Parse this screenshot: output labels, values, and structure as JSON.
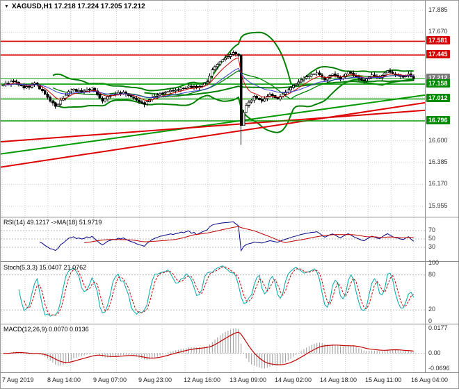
{
  "window": {
    "title": "XAGUSD,H1"
  },
  "header": {
    "marker": "▼",
    "symbol_line": "XAGUSD,H1 17.218 17.224 17.205 17.212"
  },
  "colors": {
    "background": "#ffffff",
    "grid": "#cfcfcf",
    "separator": "#8a8a8a",
    "axis_text": "#333333",
    "up_body": "#ffffff",
    "down_body": "#000000",
    "candle_outline": "#000000",
    "bands": "#008000",
    "ma_fast": "#d00000",
    "ma_slow": "#3a3ad0",
    "resistance": "#dd0000",
    "support": "#009a00",
    "rsi": "#000080",
    "rsi_ma": "#c00000",
    "stoch": "#00a8a8",
    "stoch_signal": "#c00000",
    "macd_hist": "#9a9a9a",
    "macd_signal": "#c00000"
  },
  "axis": {
    "price_labels": [
      {
        "text": "17.885",
        "price": 17.885
      },
      {
        "text": "17.670",
        "price": 17.67
      },
      {
        "text": "16.600",
        "price": 16.6
      },
      {
        "text": "16.385",
        "price": 16.385
      },
      {
        "text": "16.170",
        "price": 16.17
      },
      {
        "text": "15.955",
        "price": 15.955
      }
    ],
    "badges": [
      {
        "text": "17.581",
        "price": 17.581,
        "bg": "#d40000"
      },
      {
        "text": "17.445",
        "price": 17.445,
        "bg": "#d40000"
      },
      {
        "text": "17.212",
        "price": 17.212,
        "bg": "#7a7a7a"
      },
      {
        "text": "17.158",
        "price": 17.158,
        "bg": "#008a00"
      },
      {
        "text": "17.012",
        "price": 17.012,
        "bg": "#008a00"
      },
      {
        "text": "16.796",
        "price": 16.796,
        "bg": "#008a00"
      }
    ],
    "time_labels": [
      "7 Aug 2019",
      "8 Aug 14:00",
      "9 Aug 07:00",
      "9 Aug 23:00",
      "12 Aug 16:00",
      "13 Aug 09:00",
      "14 Aug 02:00",
      "14 Aug 18:00",
      "15 Aug 11:00",
      "16 Aug 04:00"
    ]
  },
  "panels": {
    "rsi": {
      "header": "RSI(14) 49.1217   ->MA(18) 51.9719",
      "levels": [
        70,
        50,
        30
      ]
    },
    "stoch": {
      "header": "Stoch(5,3,3) 15.0407 21.0762",
      "scale": [
        100,
        80,
        20,
        0
      ],
      "levels": [
        80,
        20
      ]
    },
    "macd": {
      "header": "MACD(12,26,9) 0.0070 0.0136",
      "scale_top": "0.0177",
      "scale_zero": "0.00",
      "scale_bottom": "-0.0696"
    }
  },
  "chart_data": {
    "type": "candlestick",
    "symbol": "XAGUSD",
    "timeframe": "H1",
    "title": "XAGUSD,H1",
    "quote": {
      "open": 17.218,
      "high": 17.224,
      "low": 17.205,
      "close": 17.212
    },
    "ylim": [
      15.955,
      17.885
    ],
    "first_open": 17.14,
    "closes": [
      17.15,
      17.165,
      17.155,
      17.185,
      17.19,
      17.178,
      17.15,
      17.142,
      17.12,
      17.135,
      17.128,
      17.158,
      17.17,
      17.15,
      17.11,
      17.095,
      17.06,
      17.03,
      16.99,
      16.975,
      16.94,
      16.96,
      17.0,
      17.02,
      17.05,
      17.085,
      17.1,
      17.11,
      17.085,
      17.095,
      17.08,
      17.09,
      17.11,
      17.1,
      17.12,
      17.09,
      17.06,
      17.02,
      16.99,
      17.01,
      17.035,
      17.045,
      17.06,
      17.055,
      17.075,
      17.065,
      17.08,
      17.06,
      17.045,
      17.03,
      17.02,
      17.0,
      16.985,
      16.975,
      16.96,
      16.985,
      17.005,
      17.025,
      17.04,
      17.05,
      17.065,
      17.07,
      17.08,
      17.085,
      17.095,
      17.09,
      17.1,
      17.105,
      17.12,
      17.115,
      17.13,
      17.14,
      17.125,
      17.135,
      17.12,
      17.135,
      17.15,
      17.165,
      17.18,
      17.24,
      17.3,
      17.33,
      17.355,
      17.38,
      17.4,
      17.415,
      17.43,
      17.45,
      17.47,
      17.455,
      17.44,
      16.75,
      16.88,
      16.95,
      16.98,
      17.0,
      17.04,
      17.02,
      17.005,
      16.99,
      17.015,
      17.04,
      17.06,
      17.045,
      17.025,
      17.01,
      17.035,
      17.06,
      17.08,
      17.1,
      17.125,
      17.145,
      17.16,
      17.18,
      17.2,
      17.215,
      17.23,
      17.24,
      17.255,
      17.26,
      17.27,
      17.25,
      17.225,
      17.2,
      17.22,
      17.245,
      17.26,
      17.245,
      17.225,
      17.21,
      17.235,
      17.26,
      17.28,
      17.265,
      17.245,
      17.23,
      17.215,
      17.2,
      17.19,
      17.21,
      17.23,
      17.25,
      17.24,
      17.23,
      17.22,
      17.245,
      17.27,
      17.29,
      17.275,
      17.26,
      17.25,
      17.245,
      17.235,
      17.23,
      17.245,
      17.26,
      17.235,
      17.212
    ],
    "wick_overrides": [
      {
        "index": 20,
        "low": 16.915
      },
      {
        "index": 54,
        "low": 16.93
      },
      {
        "index": 88,
        "high": 17.492
      },
      {
        "index": 91,
        "high": 17.452,
        "low": 16.56
      },
      {
        "index": 92,
        "low": 16.82
      }
    ],
    "levels": {
      "resistance": [
        17.581,
        17.445
      ],
      "support": [
        17.158,
        17.012,
        16.796
      ],
      "bid": 17.212
    },
    "trendlines": [
      {
        "color": "#009900",
        "p_start": 16.47,
        "p_end": 17.05
      },
      {
        "color": "#dd0000",
        "p_start": 16.34,
        "p_end": 16.975
      },
      {
        "color": "#dd0000",
        "p_start": 16.59,
        "p_end": 16.9
      }
    ],
    "price_axis": {
      "min": 15.955,
      "max": 17.885,
      "grid": [
        17.885,
        17.67,
        17.455,
        17.24,
        17.025,
        16.81,
        16.6,
        16.385,
        16.17,
        15.955
      ]
    },
    "time_categories": [
      "7 Aug 2019",
      "8 Aug 14:00",
      "9 Aug 07:00",
      "9 Aug 23:00",
      "12 Aug 16:00",
      "13 Aug 09:00",
      "14 Aug 02:00",
      "14 Aug 18:00",
      "15 Aug 11:00",
      "16 Aug 04:00"
    ],
    "indicators": {
      "bollinger": {
        "period": 20,
        "deviation": 2
      },
      "sma_long": 55,
      "ema_fast": 8,
      "ema_slow": 21,
      "rsi": {
        "period": 14,
        "value": 49.1217,
        "ma_period": 18,
        "ma_value": 51.9719
      },
      "stochastic": {
        "k": 5,
        "d": 3,
        "slowing": 3,
        "main": 15.0407,
        "signal": 21.0762
      },
      "macd": {
        "fast": 12,
        "slow": 26,
        "signal": 9,
        "value": 0.007,
        "signal_value": 0.0136
      }
    }
  }
}
